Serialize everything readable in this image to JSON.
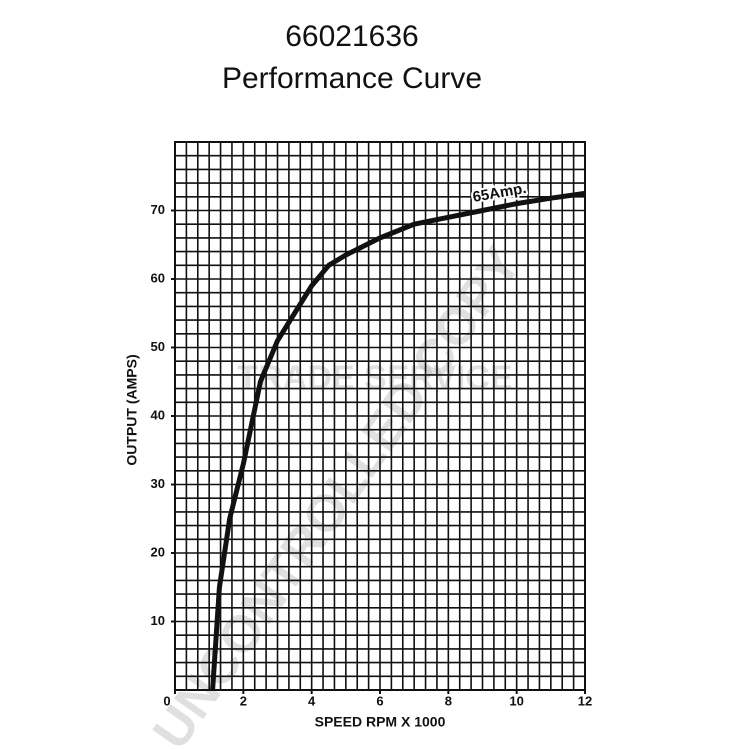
{
  "chart_data": {
    "type": "line",
    "title": "66021636",
    "subtitle": "Performance Curve",
    "xlabel": "SPEED RPM X 1000",
    "ylabel": "OUTPUT (AMPS)",
    "annotation": "65Amp.",
    "watermark": [
      "UNCONTROLLED COPY",
      "TRADE SERVICE"
    ],
    "x": [
      1.1,
      1.3,
      1.6,
      2,
      2.5,
      3,
      3.5,
      4,
      4.5,
      5,
      6,
      7,
      8,
      9,
      10,
      11,
      12
    ],
    "series": [
      {
        "name": "65Amp.",
        "color": "#111111",
        "values": [
          0,
          15,
          25,
          33,
          45,
          51,
          55,
          59,
          62,
          63.5,
          66,
          68,
          69,
          70,
          71,
          71.8,
          72.5
        ]
      }
    ],
    "xlim": [
      0,
      12
    ],
    "ylim": [
      0,
      80
    ],
    "xticks": [
      0,
      2,
      4,
      6,
      8,
      10,
      12
    ],
    "yticks": [
      10,
      20,
      30,
      40,
      50,
      60,
      70
    ],
    "grid": true
  }
}
